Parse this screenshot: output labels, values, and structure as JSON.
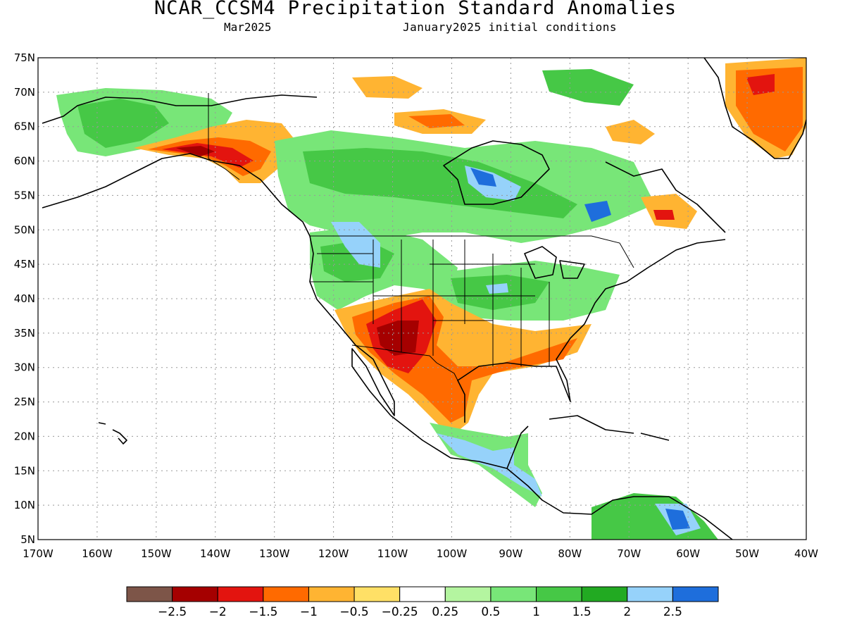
{
  "title": "NCAR_CCSM4 Precipitation Standard Anomalies",
  "subtitle_left": "Mar2025",
  "subtitle_right": "January2025 initial conditions",
  "map": {
    "lon_range": [
      -170,
      -40
    ],
    "lat_range": [
      5,
      75
    ],
    "lat_ticks": [
      "75N",
      "70N",
      "65N",
      "60N",
      "55N",
      "50N",
      "45N",
      "40N",
      "35N",
      "30N",
      "25N",
      "20N",
      "15N",
      "10N",
      "5N"
    ],
    "lon_ticks": [
      "170W",
      "160W",
      "150W",
      "140W",
      "130W",
      "120W",
      "110W",
      "100W",
      "90W",
      "80W",
      "70W",
      "60W",
      "50W",
      "40W"
    ],
    "gridlines": "dotted"
  },
  "legend": {
    "colors": [
      "#7d5548",
      "#a50000",
      "#e3140f",
      "#ff6a00",
      "#ffb432",
      "#ffe066",
      "#ffffff",
      "#b4f5a0",
      "#78e678",
      "#46c846",
      "#22aa22",
      "#96d2fa",
      "#1e6edc"
    ],
    "labels": [
      "−2.5",
      "−2",
      "−1.5",
      "−1",
      "−0.5",
      "−0.25",
      "0.25",
      "0.5",
      "1",
      "1.5",
      "2",
      "2.5"
    ]
  },
  "anomaly_colors": {
    "dry_strong": "#a50000",
    "dry_moderate": "#e3140f",
    "dry": "#ff6a00",
    "dry_light": "#ffb432",
    "dry_slight": "#ffe066",
    "wet_slight": "#b4f5a0",
    "wet_light": "#78e678",
    "wet": "#46c846",
    "wet_moderate": "#22aa22",
    "wet_strong": "#96d2fa",
    "wet_extreme": "#1e6edc"
  }
}
